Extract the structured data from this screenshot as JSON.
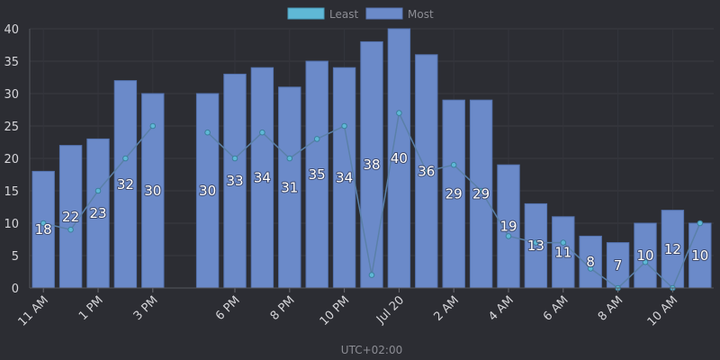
{
  "chart_data": {
    "type": "bar",
    "xlabel": "UTC+02:00",
    "ylim": [
      0,
      40
    ],
    "y_ticks": [
      0,
      5,
      10,
      15,
      20,
      25,
      30,
      35,
      40
    ],
    "grid": true,
    "legend_position": "top-center",
    "x_tick_labels": [
      "11 AM",
      "1 PM",
      "3 PM",
      "6 PM",
      "8 PM",
      "10 PM",
      "Jul 20",
      "2 AM",
      "4 AM",
      "6 AM",
      "8 AM",
      "10 AM"
    ],
    "series": [
      {
        "name": "Most",
        "type": "bar",
        "color": "#6b8ac9",
        "values": [
          18,
          22,
          23,
          32,
          30,
          null,
          30,
          33,
          34,
          31,
          35,
          34,
          38,
          40,
          36,
          29,
          29,
          19,
          13,
          11,
          8,
          7,
          10,
          12,
          10
        ]
      },
      {
        "name": "Least",
        "type": "line",
        "color": "#5fb8d6",
        "values": [
          10,
          9,
          15,
          20,
          25,
          null,
          24,
          20,
          24,
          20,
          23,
          25,
          2,
          27,
          18,
          19,
          15,
          8,
          7,
          7,
          3,
          0,
          4,
          0,
          10
        ]
      }
    ]
  }
}
